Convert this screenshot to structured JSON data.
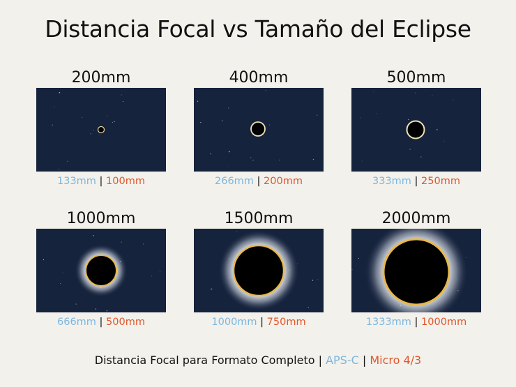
{
  "title": "Distancia Focal vs Tamaño del Eclipse",
  "panels": [
    {
      "focal": "200mm",
      "apsc": "133mm",
      "m43": "100mm",
      "sep": "|"
    },
    {
      "focal": "400mm",
      "apsc": "266mm",
      "m43": "200mm",
      "sep": "|"
    },
    {
      "focal": "500mm",
      "apsc": "333mm",
      "m43": "250mm",
      "sep": "|"
    },
    {
      "focal": "1000mm",
      "apsc": "666mm",
      "m43": "500mm",
      "sep": "|"
    },
    {
      "focal": "1500mm",
      "apsc": "1000mm",
      "m43": "750mm",
      "sep": "|"
    },
    {
      "focal": "2000mm",
      "apsc": "1333mm",
      "m43": "1000mm",
      "sep": "|"
    }
  ],
  "footer": {
    "full": "Distancia Focal para Formato Completo",
    "sep1": " | ",
    "apsc": "APS-C",
    "sep2": " | ",
    "m43": "Micro 4/3"
  },
  "colors": {
    "sky": "#16233d",
    "apsc": "#7bb7e0",
    "micro43": "#e0572b",
    "ring": "#e8b84a",
    "corona": "#ffffff"
  }
}
